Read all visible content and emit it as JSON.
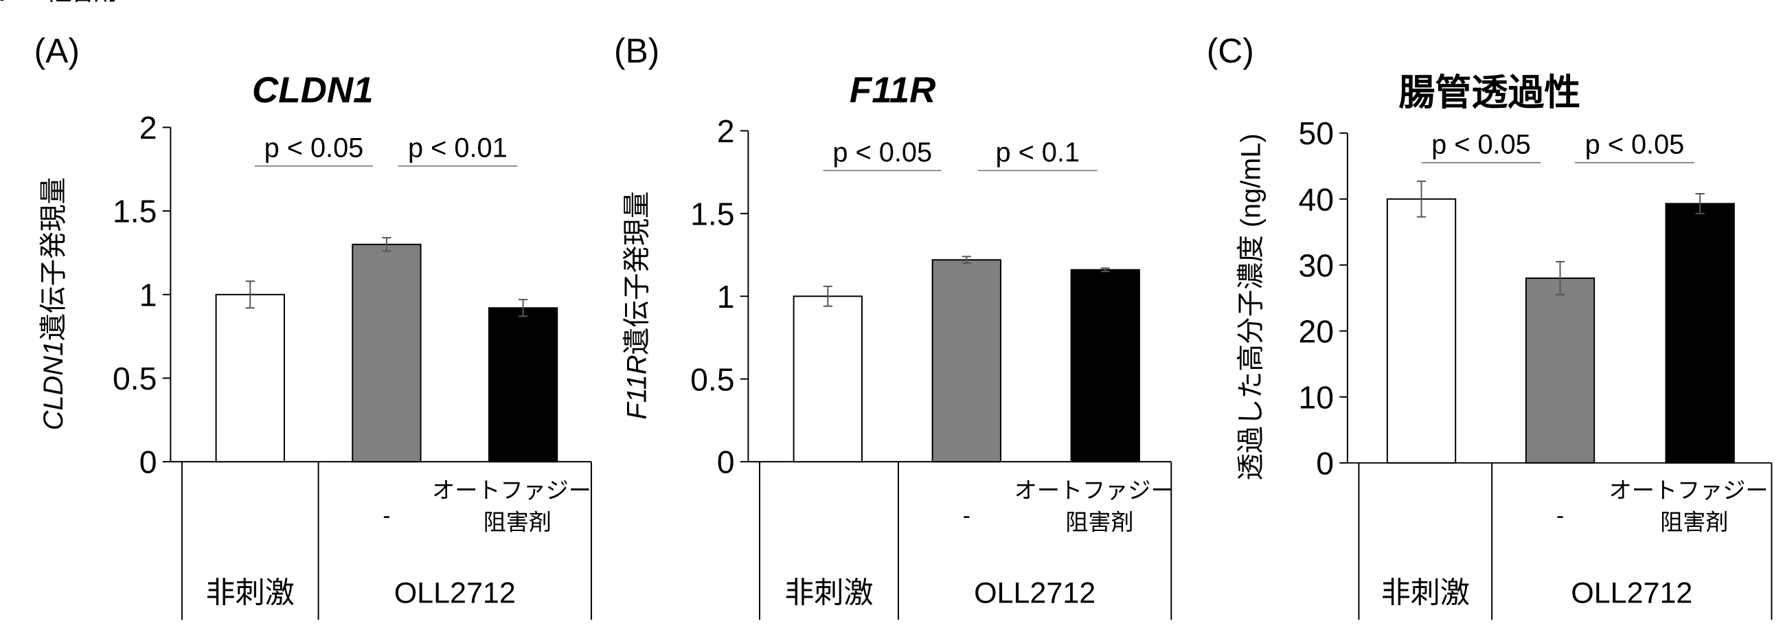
{
  "chart_data": [
    {
      "type": "bar",
      "panel_label": "(A)",
      "title": "CLDN1",
      "ylabel": [
        "CLDN1",
        "遺伝子発現量"
      ],
      "categories": [
        null,
        "-",
        "オートファジー\n阻害剤"
      ],
      "groups": [
        "非刺激",
        "OLL2712"
      ],
      "values": [
        1,
        1.3,
        0.92
      ],
      "errors": [
        0.08,
        0.04,
        0.05
      ],
      "colors": [
        "#ffffff",
        "#808080",
        "#000000"
      ],
      "comparisons": [
        "p < 0.05",
        "p < 0.01"
      ],
      "ylim": [
        0,
        2
      ],
      "yticks": [
        0,
        0.5,
        1,
        1.5,
        2
      ]
    },
    {
      "type": "bar",
      "panel_label": "(B)",
      "title": "F11R",
      "ylabel": [
        "F11R",
        "遺伝子発現量"
      ],
      "categories": [
        null,
        "-",
        "オートファジー\n阻害剤"
      ],
      "groups": [
        "非刺激",
        "OLL2712"
      ],
      "values": [
        1,
        1.22,
        1.16
      ],
      "errors": [
        0.06,
        0.02,
        0.01
      ],
      "colors": [
        "#ffffff",
        "#808080",
        "#000000"
      ],
      "comparisons": [
        "p < 0.05",
        "p < 0.1"
      ],
      "ylim": [
        0,
        2
      ],
      "yticks": [
        0,
        0.5,
        1,
        1.5,
        2
      ]
    },
    {
      "type": "bar",
      "panel_label": "(C)",
      "title": "腸管透過性",
      "ylabel": [
        "透過した高分子濃度 (ng/mL)"
      ],
      "categories": [
        null,
        "-",
        "オートファジー\n阻害剤"
      ],
      "groups": [
        "非刺激",
        "OLL2712"
      ],
      "values": [
        40,
        28,
        39.3
      ],
      "errors": [
        2.7,
        2.5,
        1.5
      ],
      "colors": [
        "#ffffff",
        "#808080",
        "#000000"
      ],
      "comparisons": [
        "p < 0.05",
        "p < 0.05"
      ],
      "ylim": [
        0,
        50
      ],
      "yticks": [
        0,
        10,
        20,
        30,
        40,
        50
      ]
    }
  ]
}
